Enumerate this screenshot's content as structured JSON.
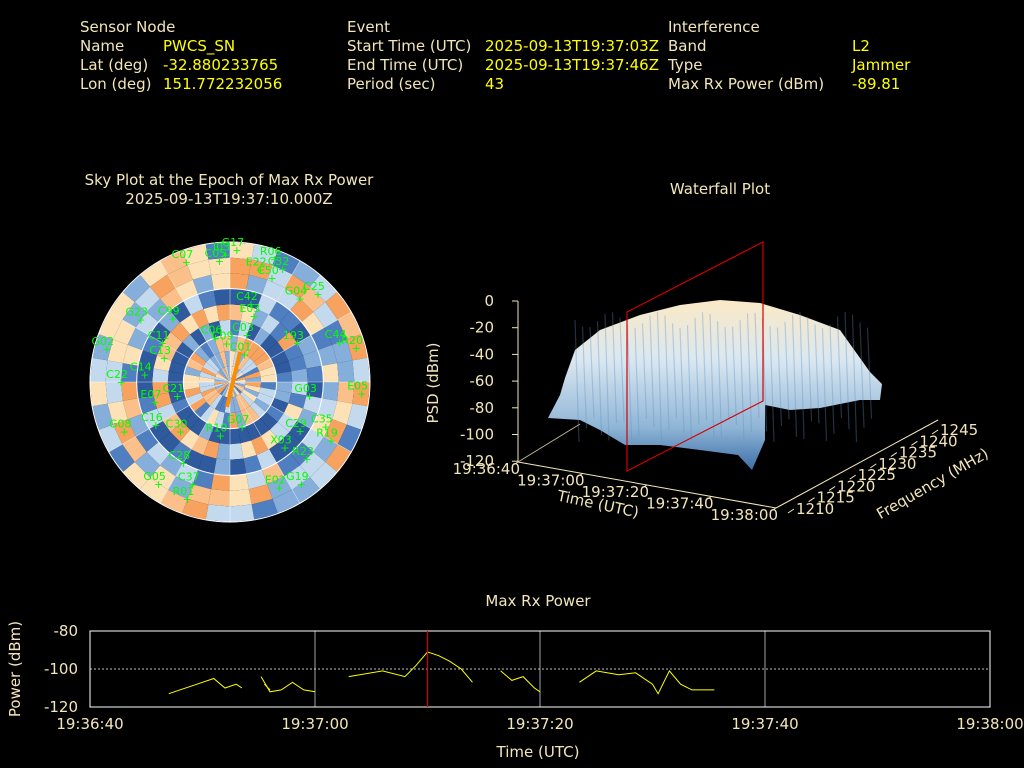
{
  "header": {
    "sensor": {
      "heading": "Sensor Node",
      "name_label": "Name",
      "name": "PWCS_SN",
      "lat_label": "Lat (deg)",
      "lat": "-32.880233765",
      "lon_label": "Lon (deg)",
      "lon": "151.772232056"
    },
    "event": {
      "heading": "Event",
      "start_label": "Start Time (UTC)",
      "start": "2025-09-13T19:37:03Z",
      "end_label": "End Time (UTC)",
      "end": "2025-09-13T19:37:46Z",
      "period_label": "Period (sec)",
      "period": "43"
    },
    "interference": {
      "heading": "Interference",
      "band_label": "Band",
      "band": "L2",
      "type_label": "Type",
      "type": "Jammer",
      "power_label": "Max Rx Power (dBm)",
      "power": "-89.81"
    }
  },
  "sky_plot": {
    "title_line1": "Sky Plot at the Epoch of Max Rx Power",
    "title_line2": "2025-09-13T19:37:10.000Z",
    "satellites": [
      {
        "id": "G17",
        "az": 3,
        "el": 5
      },
      {
        "id": "C07",
        "az": 340,
        "el": 8
      },
      {
        "id": "C05",
        "az": 355,
        "el": 12
      },
      {
        "id": "J03",
        "az": 358,
        "el": 8
      },
      {
        "id": "R06",
        "az": 20,
        "el": 6
      },
      {
        "id": "C32",
        "az": 25,
        "el": 10
      },
      {
        "id": "E22",
        "az": 15,
        "el": 15
      },
      {
        "id": "C50",
        "az": 22,
        "el": 18
      },
      {
        "id": "C25",
        "az": 45,
        "el": 10
      },
      {
        "id": "G04",
        "az": 40,
        "el": 20
      },
      {
        "id": "C42",
        "az": 15,
        "el": 38
      },
      {
        "id": "E03",
        "az": 20,
        "el": 45
      },
      {
        "id": "G23",
        "az": 305,
        "el": 20
      },
      {
        "id": "C99",
        "az": 318,
        "el": 35
      },
      {
        "id": "C03",
        "az": 20,
        "el": 58
      },
      {
        "id": "C01",
        "az": 28,
        "el": 70
      },
      {
        "id": "C09",
        "az": 355,
        "el": 65
      },
      {
        "id": "C06",
        "az": 342,
        "el": 60
      },
      {
        "id": "C44",
        "az": 70,
        "el": 15
      },
      {
        "id": "R20",
        "az": 75,
        "el": 6
      },
      {
        "id": "193",
        "az": 60,
        "el": 40
      },
      {
        "id": "C11",
        "az": 300,
        "el": 40
      },
      {
        "id": "C13",
        "az": 290,
        "el": 45
      },
      {
        "id": "G02",
        "az": 285,
        "el": 8
      },
      {
        "id": "C22",
        "az": 270,
        "el": 20
      },
      {
        "id": "C14",
        "az": 275,
        "el": 35
      },
      {
        "id": "E07",
        "az": 255,
        "el": 40
      },
      {
        "id": "C21",
        "az": 255,
        "el": 55
      },
      {
        "id": "G08",
        "az": 245,
        "el": 15
      },
      {
        "id": "C16",
        "az": 240,
        "el": 35
      },
      {
        "id": "C30",
        "az": 225,
        "el": 45
      },
      {
        "id": "C28",
        "az": 210,
        "el": 30
      },
      {
        "id": "E05",
        "az": 95,
        "el": 5
      },
      {
        "id": "G03",
        "az": 100,
        "el": 38
      },
      {
        "id": "C35",
        "az": 115,
        "el": 22
      },
      {
        "id": "C29",
        "az": 125,
        "el": 35
      },
      {
        "id": "R19",
        "az": 120,
        "el": 15
      },
      {
        "id": "R23",
        "az": 135,
        "el": 20
      },
      {
        "id": "X03",
        "az": 140,
        "el": 35
      },
      {
        "id": "G19",
        "az": 145,
        "el": 10
      },
      {
        "id": "E02",
        "az": 155,
        "el": 15
      },
      {
        "id": "R10",
        "az": 190,
        "el": 55
      },
      {
        "id": "G07",
        "az": 165,
        "el": 60
      },
      {
        "id": "C37",
        "az": 200,
        "el": 20
      },
      {
        "id": "G05",
        "az": 215,
        "el": 10
      },
      {
        "id": "R01",
        "az": 200,
        "el": 10
      }
    ]
  },
  "waterfall": {
    "title": "Waterfall Plot",
    "zlabel": "PSD (dBm)",
    "xlabel": "Time (UTC)",
    "ylabel": "Frequency (MHz)",
    "zticks": [
      "0",
      "-20",
      "-40",
      "-60",
      "-80",
      "-100",
      "-120"
    ],
    "xticks": [
      "19:36:40",
      "19:37:00",
      "19:37:20",
      "19:37:40",
      "19:38:00"
    ],
    "yticks": [
      "1210",
      "1215",
      "1220",
      "1225",
      "1230",
      "1235",
      "1240",
      "1245"
    ]
  },
  "chart_data": {
    "type": "line",
    "title": "Max Rx Power",
    "xlabel": "Time (UTC)",
    "ylabel": "Power (dBm)",
    "ylim": [
      -120,
      -80
    ],
    "xlim": [
      0,
      80
    ],
    "xticks": [
      "19:36:40",
      "19:37:00",
      "19:37:20",
      "19:37:40",
      "19:38:00"
    ],
    "yticks": [
      "-80",
      "-100",
      "-120"
    ],
    "grid": true,
    "marker_time_sec": 30,
    "series": [
      {
        "values": [
          [
            7,
            -113
          ],
          [
            10,
            -107
          ],
          [
            11,
            -105
          ],
          [
            12,
            -110
          ],
          [
            13,
            -108
          ],
          [
            13.5,
            -110
          ]
        ]
      },
      {
        "values": [
          [
            15.5,
            -108
          ],
          [
            16,
            -111
          ]
        ]
      },
      {
        "values": [
          [
            15.2,
            -104
          ],
          [
            16,
            -112
          ],
          [
            17,
            -111
          ],
          [
            18,
            -107
          ],
          [
            19,
            -111
          ],
          [
            20,
            -112
          ]
        ]
      },
      {
        "values": [
          [
            23,
            -104
          ],
          [
            26,
            -101
          ],
          [
            28,
            -104
          ],
          [
            29,
            -98
          ],
          [
            30,
            -91
          ],
          [
            31,
            -93
          ],
          [
            32,
            -96
          ],
          [
            33,
            -100
          ],
          [
            34,
            -107
          ]
        ]
      },
      {
        "values": [
          [
            36.5,
            -101
          ],
          [
            37.5,
            -106
          ],
          [
            38.5,
            -104
          ],
          [
            39.5,
            -110
          ],
          [
            40,
            -112
          ]
        ]
      },
      {
        "values": [
          [
            43.5,
            -107
          ],
          [
            45,
            -101
          ],
          [
            47,
            -103
          ],
          [
            48.5,
            -102
          ],
          [
            50,
            -108
          ],
          [
            50.5,
            -113
          ],
          [
            51.5,
            -101
          ],
          [
            52.5,
            -108
          ],
          [
            53.5,
            -111
          ],
          [
            55,
            -111
          ],
          [
            55.5,
            -111
          ]
        ]
      }
    ]
  }
}
